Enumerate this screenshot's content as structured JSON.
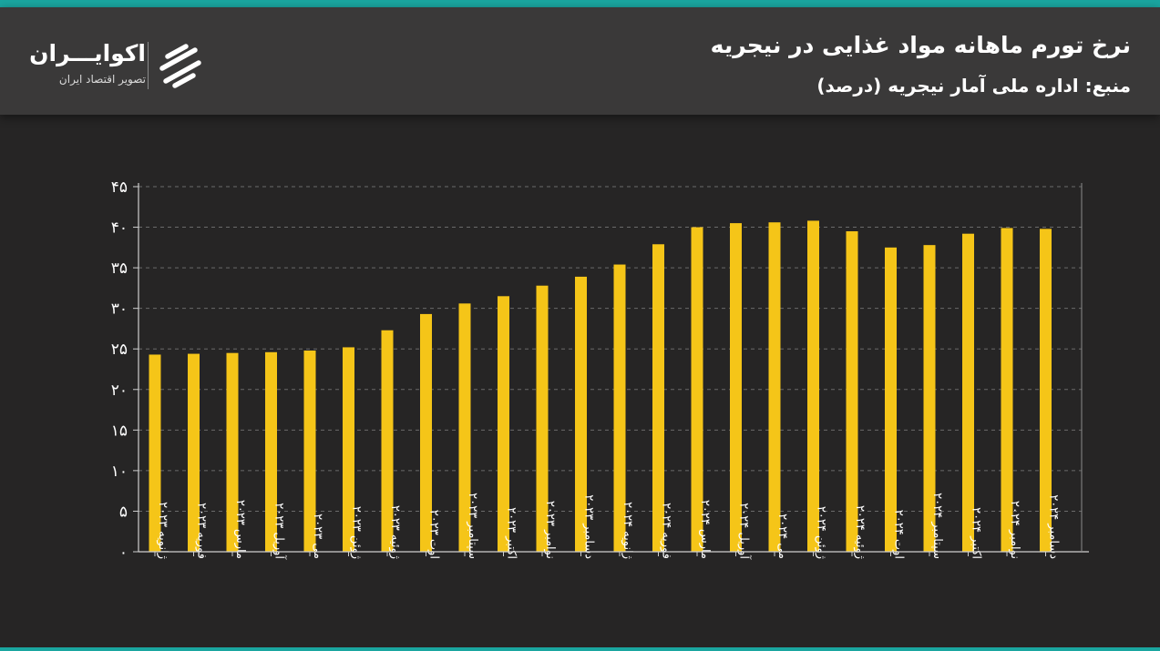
{
  "header": {
    "title": "نرخ تورم ماهانه مواد غذایی در نیجریه",
    "subtitle": "منبع: اداره ملی آمار نیجریه (درصد)"
  },
  "logo": {
    "name": "اکوایـــران",
    "tagline": "تصویر اقتصاد ایران"
  },
  "colors": {
    "background": "#262525",
    "header": "#3a3939",
    "bar": "#f5c518",
    "accent": "#1aa6a0",
    "text": "#ffffff"
  },
  "chart_data": {
    "type": "bar",
    "categories": [
      "ژانویه ۲۰۲۳",
      "فوریه ۲۰۲۳",
      "مارس ۲۰۲۳",
      "آوریل ۲۰۲۳",
      "می ۲۰۲۳",
      "ژوئن ۲۰۲۳",
      "ژوئیه ۲۰۲۳",
      "اوت ۲۰۲۳",
      "سپتامبر ۲۰۲۳",
      "اکتبر ۲۰۲۳",
      "نوامبر ۲۰۲۳",
      "دسامبر ۲۰۲۳",
      "ژانویه ۲۰۲۴",
      "فوریه ۲۰۲۴",
      "مارس ۲۰۲۴",
      "آوریل ۲۰۲۴",
      "می ۲۰۲۴",
      "ژوئن ۲۰۲۴",
      "ژوئیه ۲۰۲۴",
      "اوت ۲۰۲۴",
      "سپتامبر ۲۰۲۴",
      "اکتبر ۲۰۲۴",
      "نوامبر ۲۰۲۴",
      "دسامبر ۲۰۲۴"
    ],
    "values": [
      24.3,
      24.4,
      24.5,
      24.6,
      24.8,
      25.2,
      27.3,
      29.3,
      30.6,
      31.5,
      32.8,
      33.9,
      35.4,
      37.9,
      40.0,
      40.5,
      40.6,
      40.8,
      39.5,
      37.5,
      37.8,
      39.2,
      39.9,
      39.8
    ],
    "yticks": [
      "۰",
      "۵",
      "۱۰",
      "۱۵",
      "۲۰",
      "۲۵",
      "۳۰",
      "۳۵",
      "۴۰",
      "۴۵"
    ],
    "ylim": [
      0,
      45
    ],
    "grid": true
  }
}
